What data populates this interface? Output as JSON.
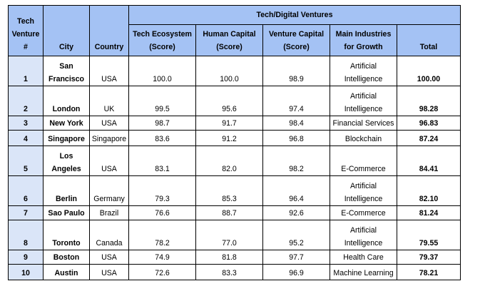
{
  "table": {
    "group_header": "Tech/Digital Ventures",
    "headers": {
      "rank": [
        "Tech",
        "Venture",
        "#"
      ],
      "city": "City",
      "country": "Country",
      "tech_ecosystem": [
        "Tech Ecosystem",
        "(Score)"
      ],
      "human_capital": [
        "Human Capital",
        "(Score)"
      ],
      "venture_capital": [
        "Venture Capital",
        "(Score)"
      ],
      "industries": [
        "Main Industries",
        "for Growth"
      ],
      "total": "Total"
    },
    "rows": [
      {
        "rank": "1",
        "city": [
          "San",
          "Francisco"
        ],
        "country": "USA",
        "tech": "100.0",
        "human": "100.0",
        "venture": "98.9",
        "industry": [
          "Artificial",
          "Intelligence"
        ],
        "total": "100.00"
      },
      {
        "rank": "2",
        "city": [
          "London"
        ],
        "country": "UK",
        "tech": "99.5",
        "human": "95.6",
        "venture": "97.4",
        "industry": [
          "Artificial",
          "Intelligence"
        ],
        "total": "98.28"
      },
      {
        "rank": "3",
        "city": [
          "New York"
        ],
        "country": "USA",
        "tech": "98.7",
        "human": "91.7",
        "venture": "98.4",
        "industry": [
          "Financial Services"
        ],
        "total": "96.83"
      },
      {
        "rank": "4",
        "city": [
          "Singapore"
        ],
        "country": "Singapore",
        "tech": "83.6",
        "human": "91.2",
        "venture": "96.8",
        "industry": [
          "Blockchain"
        ],
        "total": "87.24"
      },
      {
        "rank": "5",
        "city": [
          "Los",
          "Angeles"
        ],
        "country": "USA",
        "tech": "83.1",
        "human": "82.0",
        "venture": "98.2",
        "industry": [
          "E-Commerce"
        ],
        "total": "84.41"
      },
      {
        "rank": "6",
        "city": [
          "Berlin"
        ],
        "country": "Germany",
        "tech": "79.3",
        "human": "85.3",
        "venture": "96.4",
        "industry": [
          "Artificial",
          "Intelligence"
        ],
        "total": "82.10"
      },
      {
        "rank": "7",
        "city": [
          "Sao Paulo"
        ],
        "country": "Brazil",
        "tech": "76.6",
        "human": "88.7",
        "venture": "92.6",
        "industry": [
          "E-Commerce"
        ],
        "total": "81.24"
      },
      {
        "rank": "8",
        "city": [
          "Toronto"
        ],
        "country": "Canada",
        "tech": "78.2",
        "human": "77.0",
        "venture": "95.2",
        "industry": [
          "Artificial",
          "Intelligence"
        ],
        "total": "79.55"
      },
      {
        "rank": "9",
        "city": [
          "Boston"
        ],
        "country": "USA",
        "tech": "74.9",
        "human": "81.8",
        "venture": "97.7",
        "industry": [
          "Health Care"
        ],
        "total": "79.37"
      },
      {
        "rank": "10",
        "city": [
          "Austin"
        ],
        "country": "USA",
        "tech": "72.6",
        "human": "83.3",
        "venture": "96.9",
        "industry": [
          "Machine Learning"
        ],
        "total": "78.21"
      }
    ]
  }
}
